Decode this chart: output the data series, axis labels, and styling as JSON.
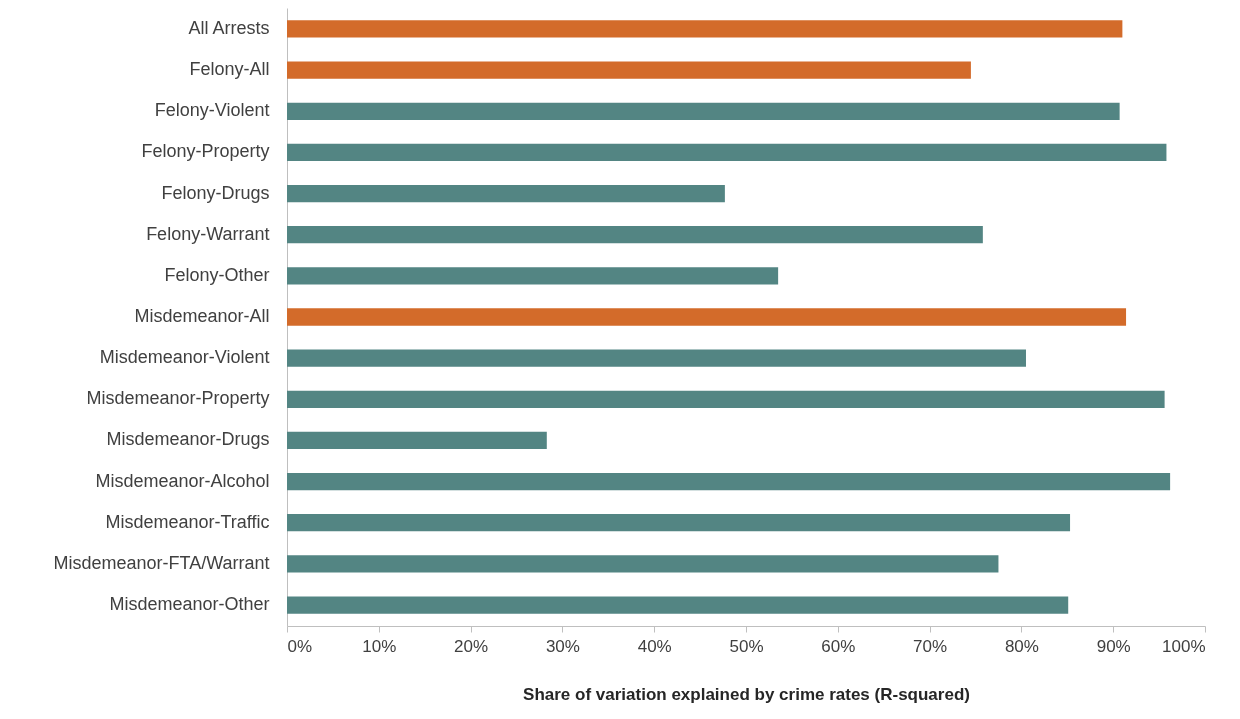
{
  "chart_data": {
    "type": "bar",
    "orientation": "horizontal",
    "xlabel": "Share of variation explained by crime rates (R-squared)",
    "categories": [
      "All Arrests",
      "Felony-All",
      "Felony-Violent",
      "Felony-Property",
      "Felony-Drugs",
      "Felony-Warrant",
      "Felony-Other",
      "Misdemeanor-All",
      "Misdemeanor-Violent",
      "Misdemeanor-Property",
      "Misdemeanor-Drugs",
      "Misdemeanor-Alcohol",
      "Misdemeanor-Traffic",
      "Misdemeanor-FTA/Warrant",
      "Misdemeanor-Other"
    ],
    "values": [
      91.0,
      74.5,
      90.7,
      95.8,
      47.7,
      75.8,
      53.5,
      91.4,
      80.5,
      95.6,
      28.3,
      96.2,
      85.3,
      77.5,
      85.1
    ],
    "colors": [
      "#d36b2a",
      "#d36b2a",
      "#538583",
      "#538583",
      "#538583",
      "#538583",
      "#538583",
      "#d36b2a",
      "#538583",
      "#538583",
      "#538583",
      "#538583",
      "#538583",
      "#538583",
      "#538583"
    ],
    "xlim": [
      0,
      100
    ],
    "xticks": [
      {
        "value": 0,
        "label": "0%"
      },
      {
        "value": 10,
        "label": "10%"
      },
      {
        "value": 20,
        "label": "20%"
      },
      {
        "value": 30,
        "label": "30%"
      },
      {
        "value": 40,
        "label": "40%"
      },
      {
        "value": 50,
        "label": "50%"
      },
      {
        "value": 60,
        "label": "60%"
      },
      {
        "value": 70,
        "label": "70%"
      },
      {
        "value": 80,
        "label": "80%"
      },
      {
        "value": 90,
        "label": "90%"
      },
      {
        "value": 100,
        "label": "100%"
      }
    ],
    "grid": false
  }
}
